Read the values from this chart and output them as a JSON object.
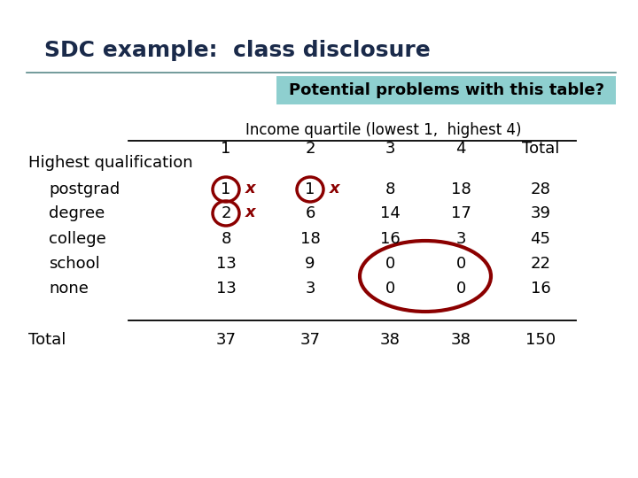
{
  "title": "SDC example:  class disclosure",
  "subtitle": "Potential problems with this table?",
  "subtitle_bg": "#8ecfcf",
  "col_header_label": "Income quartile (lowest 1,  highest 4)",
  "col_headers": [
    "1",
    "2",
    "3",
    "4",
    "Total"
  ],
  "row_group_label": "Highest qualification",
  "row_labels": [
    "postgrad",
    "degree",
    "college",
    "school",
    "none"
  ],
  "total_label": "Total",
  "data": [
    [
      "1",
      "1",
      "8",
      "18",
      "28"
    ],
    [
      "2",
      "6",
      "14",
      "17",
      "39"
    ],
    [
      "8",
      "18",
      "16",
      "3",
      "45"
    ],
    [
      "13",
      "9",
      "0",
      "0",
      "22"
    ],
    [
      "13",
      "3",
      "0",
      "0",
      "16"
    ]
  ],
  "totals": [
    "37",
    "37",
    "38",
    "38",
    "150"
  ],
  "circle_color": "#8b0000",
  "bg_color": "#ffffff",
  "title_color": "#1a2a4a",
  "font_size_title": 18,
  "font_size_subtitle": 13,
  "font_size_col_header": 12,
  "font_size_body": 13,
  "font_size_x": 13
}
